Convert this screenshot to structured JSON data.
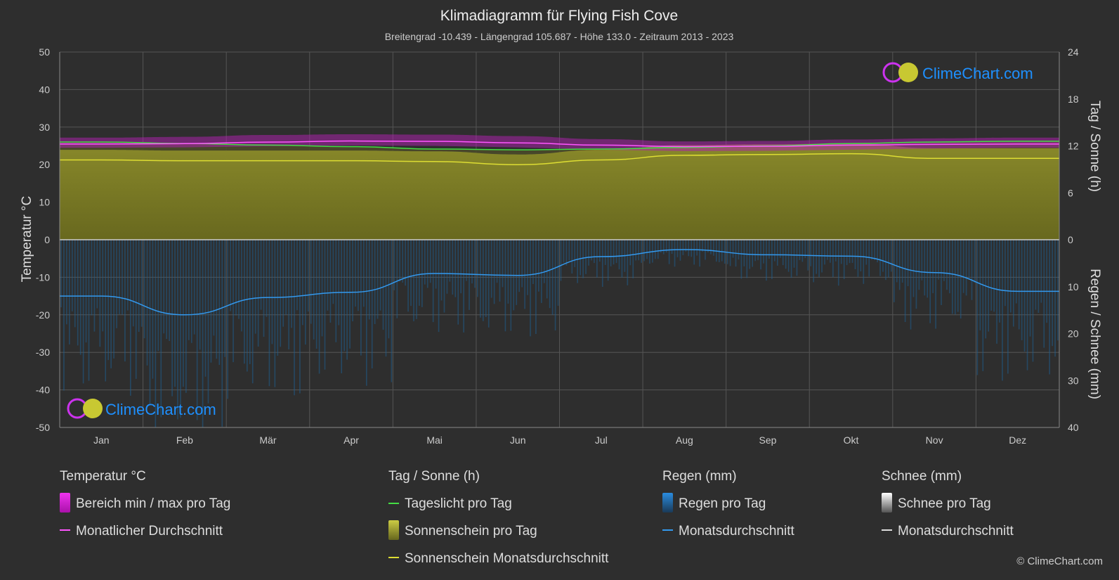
{
  "chart_data": {
    "type": "area",
    "title": "Klimadiagramm für Flying Fish Cove",
    "subtitle": "Breitengrad -10.439 - Längengrad 105.687 - Höhe 133.0 - Zeitraum 2013 - 2023",
    "ylabel_left": "Temperatur °C",
    "ylabel_right_top": "Tag / Sonne (h)",
    "ylabel_right_bottom": "Regen / Schnee (mm)",
    "categories": [
      "Jan",
      "Feb",
      "Mär",
      "Apr",
      "Mai",
      "Jun",
      "Jul",
      "Aug",
      "Sep",
      "Okt",
      "Nov",
      "Dez"
    ],
    "y_left_ticks": [
      "50",
      "40",
      "30",
      "20",
      "10",
      "0",
      "-10",
      "-20",
      "-30",
      "-40",
      "-50"
    ],
    "y_right_top_ticks": [
      "24",
      "18",
      "12",
      "6",
      "0"
    ],
    "y_right_bottom_ticks": [
      "10",
      "20",
      "30",
      "40"
    ],
    "ylim_left": [
      -50,
      50
    ],
    "ylim_sun_hours": [
      0,
      24
    ],
    "ylim_rain_mm": [
      0,
      40
    ],
    "series": [
      {
        "name": "Tageslicht pro Tag",
        "unit": "h",
        "color": "#44dd44",
        "values": [
          12.5,
          12.3,
          12.1,
          11.9,
          11.6,
          11.5,
          11.6,
          11.8,
          12.0,
          12.3,
          12.5,
          12.6
        ]
      },
      {
        "name": "Sonnenschein Monatsdurchschnitt",
        "unit": "h",
        "color": "#dddd33",
        "values": [
          10.2,
          10.1,
          10.1,
          10.1,
          10.0,
          9.6,
          10.2,
          10.8,
          10.9,
          11.0,
          10.4,
          10.4
        ]
      },
      {
        "name": "Temperatur Monatlicher Durchschnitt",
        "unit": "°C",
        "color": "#ff55ff",
        "values": [
          25.5,
          25.6,
          26.0,
          26.3,
          26.2,
          25.8,
          25.2,
          24.8,
          24.9,
          25.2,
          25.4,
          25.5
        ]
      },
      {
        "name": "Regen Monatsdurchschnitt",
        "unit": "mm",
        "color": "#3399ee",
        "values": [
          12.0,
          16.0,
          12.3,
          11.2,
          7.2,
          7.6,
          3.6,
          2.1,
          3.2,
          3.5,
          7.0,
          11.0
        ]
      }
    ],
    "temp_range_per_day": {
      "min_values": [
        24.5,
        24.6,
        24.9,
        25.1,
        25.0,
        24.6,
        24.0,
        23.6,
        23.7,
        24.0,
        24.3,
        24.5
      ],
      "max_values": [
        27.2,
        27.4,
        27.9,
        28.1,
        28.0,
        27.6,
        26.8,
        26.2,
        26.3,
        26.7,
        27.0,
        27.2
      ]
    },
    "grid": true,
    "legend_position": "bottom"
  },
  "legend": {
    "temperature": {
      "heading": "Temperatur °C",
      "items": [
        "Bereich min / max pro Tag",
        "Monatlicher Durchschnitt"
      ]
    },
    "sun": {
      "heading": "Tag / Sonne (h)",
      "items": [
        "Tageslicht pro Tag",
        "Sonnenschein pro Tag",
        "Sonnenschein Monatsdurchschnitt"
      ]
    },
    "rain": {
      "heading": "Regen (mm)",
      "items": [
        "Regen pro Tag",
        "Monatsdurchschnitt"
      ]
    },
    "snow": {
      "heading": "Schnee (mm)",
      "items": [
        "Schnee pro Tag",
        "Monatsdurchschnitt"
      ]
    }
  },
  "watermark": {
    "logo_text": "ClimeChart.com"
  },
  "copyright": "© ClimeChart.com",
  "colors": {
    "background": "#2e2e2e",
    "temp_range": "#cc22cc",
    "sunshine_fill": "#999922",
    "rain_fill": "#1f5f8f",
    "daylight": "#44dd44",
    "sun_avg": "#dddd33",
    "rain_avg": "#3399ee",
    "temp_avg": "#ff55ff",
    "snow": "#dddddd",
    "logo_blue": "#1e90ff"
  }
}
